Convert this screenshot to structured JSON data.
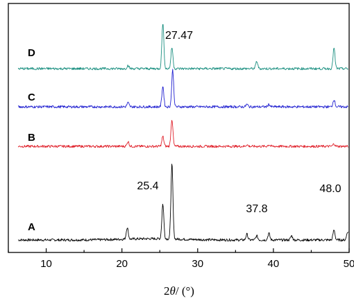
{
  "chart_data": {
    "type": "line",
    "xlabel_parts": [
      "2",
      "θ",
      "/ (°)"
    ],
    "xlim": [
      5,
      50
    ],
    "x_ticks": [
      10,
      20,
      30,
      40,
      50
    ],
    "x_tick_labels": [
      "10",
      "20",
      "30",
      "40",
      "50"
    ],
    "grid": false,
    "y_ticks_shown": false,
    "colors": {
      "A": "#000000",
      "B": "#e0202a",
      "C": "#1f1fd0",
      "D": "#1a8f80"
    },
    "series": [
      {
        "name": "A",
        "peaks": [
          [
            20.7,
            0.14
          ],
          [
            25.4,
            0.42
          ],
          [
            26.6,
            0.9
          ],
          [
            36.5,
            0.07
          ],
          [
            37.8,
            0.05
          ],
          [
            39.4,
            0.08
          ],
          [
            42.4,
            0.05
          ],
          [
            48.0,
            0.12
          ],
          [
            49.8,
            0.1
          ]
        ]
      },
      {
        "name": "B",
        "peaks": [
          [
            20.8,
            0.06
          ],
          [
            25.4,
            0.12
          ],
          [
            26.6,
            0.33
          ],
          [
            36.5,
            0.02
          ],
          [
            39.4,
            0.02
          ],
          [
            48.0,
            0.03
          ]
        ]
      },
      {
        "name": "C",
        "peaks": [
          [
            20.8,
            0.05
          ],
          [
            25.4,
            0.25
          ],
          [
            26.7,
            0.45
          ],
          [
            36.5,
            0.03
          ],
          [
            39.4,
            0.03
          ],
          [
            48.0,
            0.09
          ]
        ]
      },
      {
        "name": "D",
        "peaks": [
          [
            20.8,
            0.04
          ],
          [
            25.4,
            0.56
          ],
          [
            26.6,
            0.26
          ],
          [
            37.8,
            0.09
          ],
          [
            48.0,
            0.25
          ]
        ]
      }
    ],
    "annotations": [
      {
        "text": "27.47",
        "x": 27.47,
        "series": "D"
      },
      {
        "text": "25.4",
        "x": 25.4,
        "series": "A"
      },
      {
        "text": "37.8",
        "x": 37.8,
        "series": "A"
      },
      {
        "text": "48.0",
        "x": 48.0,
        "series": "A"
      }
    ]
  }
}
